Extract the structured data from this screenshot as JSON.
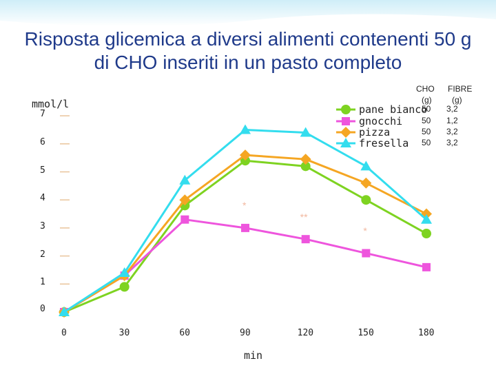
{
  "title": {
    "line1": "Risposta glicemica a diversi alimenti contenenti 50 g",
    "line2": "di CHO inseriti in un pasto completo"
  },
  "chart_data": {
    "type": "line",
    "ylabel": "mmol/l",
    "xlabel": "min",
    "x": [
      0,
      30,
      60,
      90,
      120,
      150,
      180
    ],
    "x_ticks": [
      "0",
      "30",
      "60",
      "90",
      "120",
      "150",
      "180"
    ],
    "y_ticks": [
      "0",
      "1",
      "2",
      "3",
      "4",
      "5",
      "6",
      "7"
    ],
    "ylim": [
      0,
      7
    ],
    "grid": false,
    "legend_position": "top-right",
    "series": [
      {
        "name": "pane bianco",
        "color": "#7ed321",
        "marker": "circle",
        "cho": "50",
        "fibre": "3,2",
        "values": [
          0,
          0.9,
          3.8,
          5.4,
          5.2,
          4.0,
          2.8
        ]
      },
      {
        "name": "gnocchi",
        "color": "#ee55dd",
        "marker": "square",
        "cho": "50",
        "fibre": "1,2",
        "values": [
          0,
          1.3,
          3.3,
          3.0,
          2.6,
          2.1,
          1.6
        ]
      },
      {
        "name": "pizza",
        "color": "#f5a623",
        "marker": "diamond",
        "cho": "50",
        "fibre": "3,2",
        "values": [
          0,
          1.3,
          4.0,
          5.6,
          5.45,
          4.6,
          3.5
        ]
      },
      {
        "name": "fresella",
        "color": "#33ddee",
        "marker": "triangle",
        "cho": "50",
        "fibre": "3,2",
        "values": [
          0,
          1.4,
          4.7,
          6.5,
          6.4,
          5.2,
          3.3
        ]
      }
    ],
    "table_headers": {
      "cho": [
        "CHO",
        "(g)"
      ],
      "fibre": [
        "FIBRE",
        "(g)"
      ]
    },
    "annotations": [
      {
        "text": "*",
        "x": 90,
        "y": 3.8
      },
      {
        "text": "**",
        "x": 120,
        "y": 3.4
      },
      {
        "text": "*",
        "x": 150,
        "y": 2.9
      }
    ]
  }
}
